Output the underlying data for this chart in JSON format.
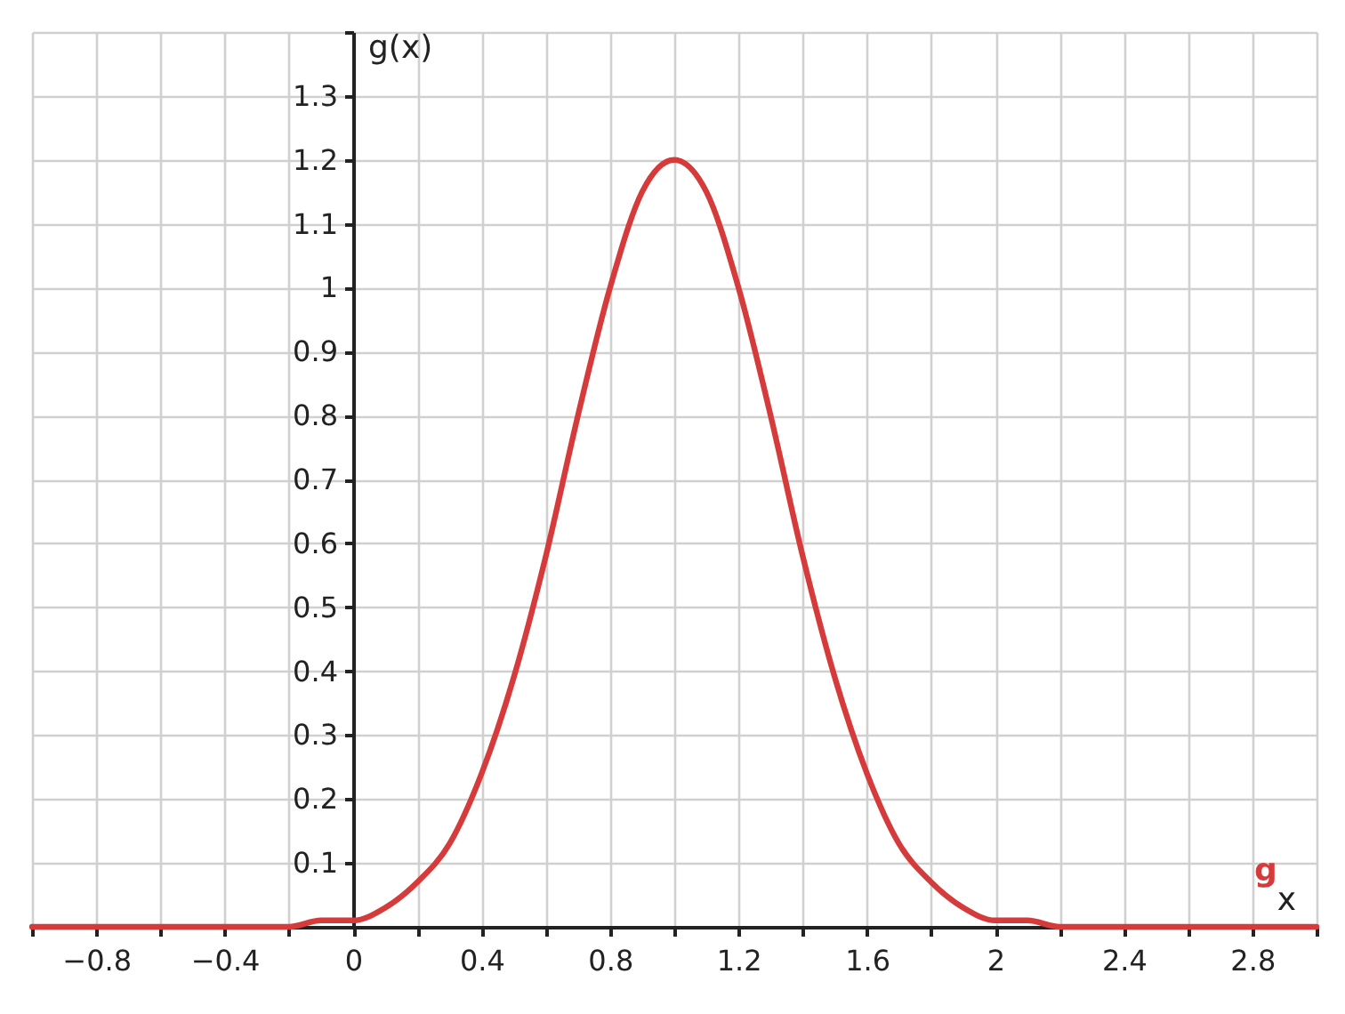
{
  "chart_data": {
    "type": "line",
    "xlabel": "x",
    "ylabel": "g(x)",
    "x": [
      -1,
      -0.5,
      -0.2,
      -0.1,
      0,
      0.1,
      0.2,
      0.3,
      0.4,
      0.5,
      0.6,
      0.7,
      0.8,
      0.9,
      1,
      1.1,
      1.2,
      1.3,
      1.4,
      1.5,
      1.6,
      1.7,
      1.8,
      1.9,
      2,
      2.1,
      2.2,
      2.5,
      3
    ],
    "series": [
      {
        "name": "g",
        "color": "#d63b3b",
        "values": [
          0,
          0,
          0,
          0.01,
          0.01,
          0.03,
          0.07,
          0.13,
          0.24,
          0.39,
          0.58,
          0.8,
          1,
          1.15,
          1.2,
          1.15,
          1,
          0.8,
          0.58,
          0.39,
          0.24,
          0.13,
          0.07,
          0.03,
          0.01,
          0.01,
          0,
          0,
          0
        ]
      }
    ],
    "xlim": [
      -1,
      3
    ],
    "xticks": [
      {
        "value": -1,
        "label": null
      },
      -0.8,
      {
        "value": -0.6,
        "label": null
      },
      -0.4,
      {
        "value": -0.2,
        "label": null
      },
      0,
      {
        "value": 0.2,
        "label": null
      },
      0.4,
      {
        "value": 0.6,
        "label": null
      },
      0.8,
      {
        "value": 1,
        "label": null
      },
      1.2,
      {
        "value": 1.4,
        "label": null
      },
      1.6,
      {
        "value": 1.8,
        "label": null
      },
      2,
      {
        "value": 2.2,
        "label": null
      },
      2.4,
      {
        "value": 2.6,
        "label": null
      },
      2.8,
      {
        "value": 3,
        "label": null
      }
    ],
    "ylim": [
      0,
      1.4
    ],
    "yticks": [
      {
        "value": 0,
        "label": null
      },
      0.1,
      0.2,
      0.3,
      0.4,
      0.5,
      0.6,
      0.7,
      0.8,
      0.9,
      1,
      1.1,
      1.2,
      1.3,
      {
        "value": 1.4,
        "label": null
      }
    ],
    "grid": true,
    "legend": "bottom right",
    "marker": "none",
    "line_style": "solid"
  }
}
